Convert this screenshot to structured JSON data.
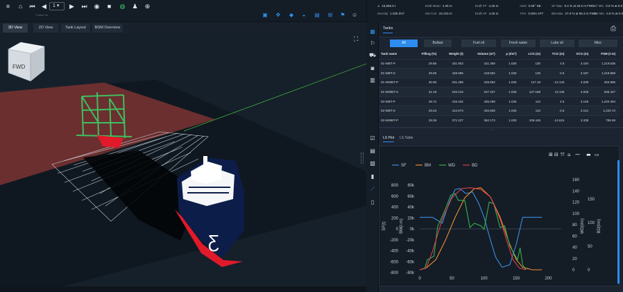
{
  "toolbar": {
    "page_value": "1",
    "sub_caption": "Frame no"
  },
  "stats": {
    "row1": [
      {
        "label": "Δ",
        "value": "15,566.5 t"
      },
      {
        "label": "Draft Mean",
        "value": "4.35 m"
      },
      {
        "label": "Draft FP",
        "value": "4.25 m"
      },
      {
        "label": "Heel",
        "value": "0.06° SB"
      },
      {
        "label": "SF Max",
        "value": "9.4 % at 25.0 m FWD"
      },
      {
        "label": "SF Min",
        "value": "0.0 % at 0.0 m FWD"
      }
    ],
    "row2": [
      {
        "label": "Density",
        "value": "1.025 t/m³"
      },
      {
        "label": "GM Corr",
        "value": "22.415 m"
      },
      {
        "label": "Draft AP",
        "value": "4.25 m"
      },
      {
        "label": "Trim",
        "value": "0.00m AFT"
      },
      {
        "label": "BM Max",
        "value": "27.0 % at 86.3 m FWD"
      },
      {
        "label": "BM Min",
        "value": "0.0 % at 0.0 m FWD"
      }
    ]
  },
  "view_tabs": [
    "3D View",
    "2D View",
    "Tank Layout",
    "BDM Overview"
  ],
  "viewcube": {
    "label": "FWD"
  },
  "tanks_panel": {
    "title": "Tanks",
    "filters": [
      "All",
      "Ballast",
      "Fuel oil",
      "Fresh water",
      "Lube oil",
      "Misc"
    ],
    "columns": [
      "Tank name",
      "Filling (%)",
      "Weight (t)",
      "Volume (m³)",
      "ρ (t/m³)",
      "LCG (m)",
      "TCG (m)",
      "VCG (m)",
      "FSM (t·m)"
    ],
    "rows": [
      [
        "01-WBT-P",
        "29.86",
        "431.903",
        "421.369",
        "1.025",
        "130",
        "4.5",
        "3.194",
        "1,219.536"
      ],
      [
        "01-WBT-S",
        "29.66",
        "429.086",
        "418.592",
        "1.025",
        "130",
        "-4.5",
        "3.187",
        "1,219.858"
      ],
      [
        "01-WWBT-P",
        "30.96",
        "231.498",
        "225.852",
        "1.025",
        "127.18",
        "-13.133",
        "4.038",
        "263.986"
      ],
      [
        "01-WWBT-S",
        "31.18",
        "233.123",
        "227.437",
        "1.025",
        "127.188",
        "13.136",
        "4.049",
        "265.427"
      ],
      [
        "02-WBT-P",
        "28.72",
        "415.432",
        "405.299",
        "1.025",
        "110",
        "4.5",
        "3.149",
        "1,220.494"
      ],
      [
        "02-WBT-S",
        "28.53",
        "412.673",
        "402.608",
        "1.025",
        "110",
        "-4.5",
        "3.141",
        "1,220.72"
      ],
      [
        "02-WWBT-P",
        "29.06",
        "371.227",
        "362.173",
        "1.025",
        "109.448",
        "-14.615",
        "3.338",
        "789.09"
      ]
    ]
  },
  "plot_tabs": [
    "LS Plot",
    "LS Table"
  ],
  "chart_data": {
    "type": "line",
    "x_range": [
      0,
      220
    ],
    "x_ticks": [
      0,
      50,
      100,
      150,
      200
    ],
    "axes": {
      "sf_ticks": [
        "800",
        "600",
        "400",
        "200",
        "0",
        "-200",
        "-400",
        "-600",
        "-800"
      ],
      "sf_label": "SF(t)",
      "bm_ticks": [
        "80k",
        "60k",
        "40k",
        "20k",
        "0k",
        "-20k",
        "-40k",
        "-60k",
        "-80k"
      ],
      "bm_label": "BM(t·m)",
      "wd_ticks": [
        "160",
        "140",
        "120",
        "100",
        "80",
        "60",
        "40",
        "20",
        "0"
      ],
      "wd_label": "WD(t/m)",
      "bd_ticks": [
        "150",
        "100",
        "50",
        "0"
      ],
      "bd_label": "BD(t/m)"
    },
    "series": [
      {
        "name": "SF",
        "color": "#3b8fe0",
        "x": [
          0,
          20,
          35,
          45,
          55,
          62,
          72,
          82,
          92,
          100,
          110,
          118,
          128,
          140,
          150,
          160,
          175,
          190
        ],
        "y_norm": [
          0.62,
          0.62,
          0.55,
          0.78,
          0.95,
          0.96,
          0.9,
          0.92,
          0.78,
          0.62,
          0.35,
          0.15,
          0.03,
          0.06,
          0.3,
          0.62,
          0.62,
          0.62
        ]
      },
      {
        "name": "BM",
        "color": "#f0902c",
        "x": [
          0,
          10,
          25,
          40,
          55,
          70,
          85,
          95,
          110,
          125,
          140,
          150,
          160,
          175,
          190
        ],
        "y_norm": [
          0.0,
          0.02,
          0.12,
          0.35,
          0.62,
          0.85,
          0.96,
          0.97,
          0.86,
          0.62,
          0.3,
          0.12,
          0.03,
          0.0,
          0.0
        ]
      },
      {
        "name": "WD",
        "color": "#36b24a",
        "x": [
          0,
          8,
          12,
          22,
          28,
          32,
          40,
          48,
          55,
          60,
          70,
          78,
          85,
          95,
          100,
          108,
          115,
          125,
          132,
          140,
          146,
          152,
          156,
          160,
          165
        ],
        "y_norm": [
          0.0,
          0.02,
          0.12,
          0.16,
          0.52,
          0.58,
          0.72,
          0.88,
          0.9,
          0.82,
          0.82,
          0.5,
          0.55,
          0.52,
          0.48,
          0.8,
          0.78,
          0.5,
          0.52,
          0.28,
          0.2,
          0.12,
          0.26,
          0.06,
          0.0
        ]
      },
      {
        "name": "BD",
        "color": "#e0404a",
        "x": [
          0,
          10,
          20,
          35,
          50,
          65,
          80,
          95,
          110,
          125,
          135,
          145,
          155,
          165
        ],
        "y_norm": [
          0.0,
          0.02,
          0.22,
          0.6,
          0.85,
          0.96,
          0.97,
          0.95,
          0.86,
          0.6,
          0.35,
          0.12,
          0.02,
          0.0
        ]
      }
    ]
  }
}
